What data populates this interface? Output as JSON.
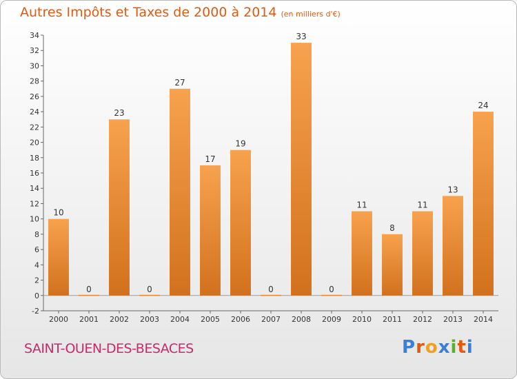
{
  "header": {
    "title": "Autres Impôts et Taxes de 2000 à 2014",
    "unit": "(en milliers d'€)"
  },
  "footer": {
    "commune": "SAINT-OUEN-DES-BESACES",
    "logo_letters": [
      "P",
      "r",
      "o",
      "x",
      "i",
      "t",
      "i"
    ]
  },
  "colors": {
    "title": "#e05a10",
    "commune": "#c8296a",
    "bar_top": "#f7a24e",
    "bar_bottom": "#d2711d",
    "logo": [
      "#3a7fd6",
      "#e05a10",
      "#f0a020",
      "#3a7fd6",
      "#59b030",
      "#e05a10",
      "#3a7fd6"
    ]
  },
  "chart_data": {
    "type": "bar",
    "title": "Autres Impôts et Taxes de 2000 à 2014",
    "xlabel": "",
    "ylabel": "",
    "categories": [
      "2000",
      "2001",
      "2002",
      "2003",
      "2004",
      "2005",
      "2006",
      "2007",
      "2008",
      "2009",
      "2010",
      "2011",
      "2012",
      "2013",
      "2014"
    ],
    "values": [
      10,
      0,
      23,
      0,
      27,
      17,
      19,
      0,
      33,
      0,
      11,
      8,
      11,
      13,
      24
    ],
    "ylim": [
      -2,
      34
    ],
    "yticks": [
      -2,
      0,
      2,
      4,
      6,
      8,
      10,
      12,
      14,
      16,
      18,
      20,
      22,
      24,
      26,
      28,
      30,
      32,
      34
    ],
    "grid": false,
    "legend": "none"
  }
}
